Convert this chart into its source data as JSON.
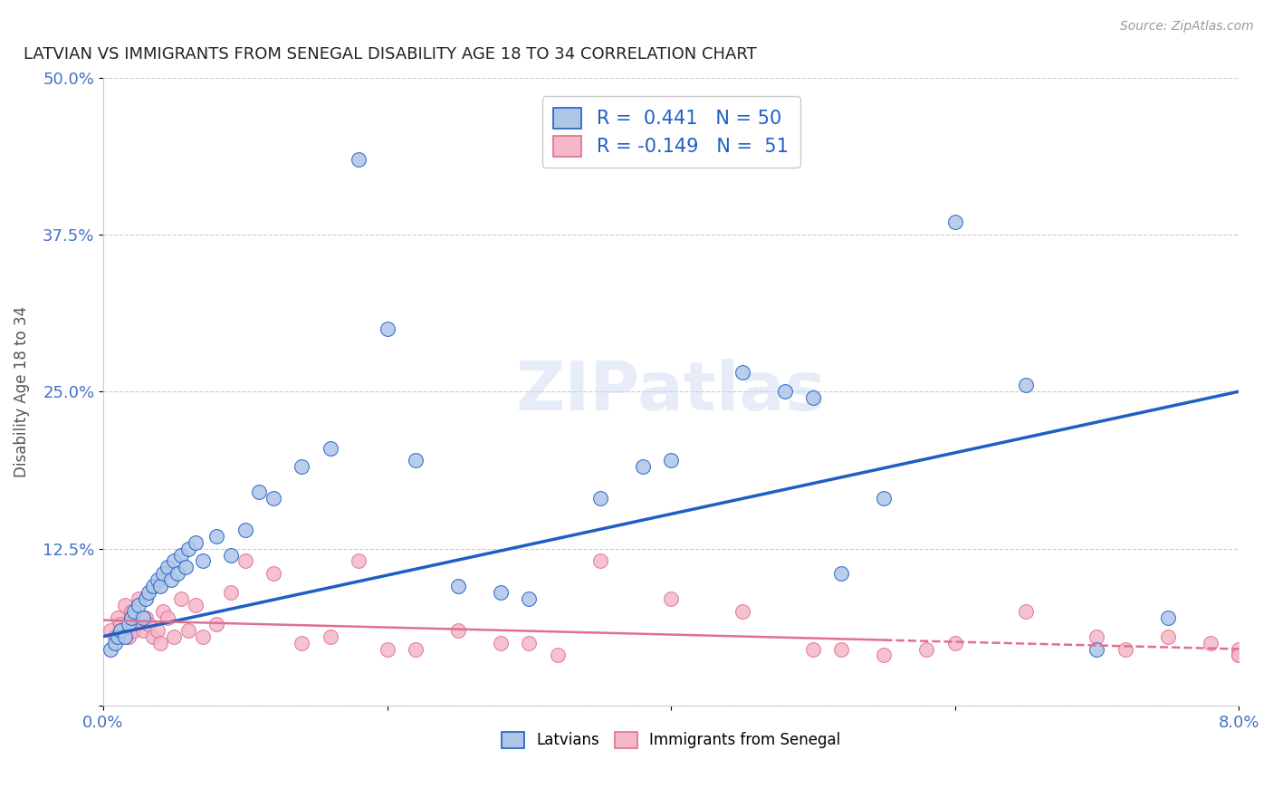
{
  "title": "LATVIAN VS IMMIGRANTS FROM SENEGAL DISABILITY AGE 18 TO 34 CORRELATION CHART",
  "source": "Source: ZipAtlas.com",
  "xlim": [
    0.0,
    8.0
  ],
  "ylim": [
    0.0,
    50.0
  ],
  "ylabel": "Disability Age 18 to 34",
  "legend_latvians": "Latvians",
  "legend_senegal": "Immigrants from Senegal",
  "R_latvian": 0.441,
  "N_latvian": 50,
  "R_senegal": -0.149,
  "N_senegal": 51,
  "color_latvian": "#aec6e8",
  "color_senegal": "#f4b8c8",
  "color_line_latvian": "#1f5fc4",
  "color_line_senegal": "#e07090",
  "color_axis_label": "#4472c4",
  "background_color": "#ffffff",
  "grid_color": "#cccccc",
  "latvian_x": [
    0.05,
    0.08,
    0.1,
    0.12,
    0.15,
    0.18,
    0.2,
    0.22,
    0.25,
    0.28,
    0.3,
    0.32,
    0.35,
    0.38,
    0.4,
    0.42,
    0.45,
    0.48,
    0.5,
    0.52,
    0.55,
    0.58,
    0.6,
    0.65,
    0.7,
    0.8,
    0.9,
    1.0,
    1.1,
    1.2,
    1.4,
    1.6,
    1.8,
    2.0,
    2.2,
    2.5,
    2.8,
    3.0,
    3.5,
    3.8,
    4.0,
    4.5,
    4.8,
    5.0,
    5.2,
    5.5,
    6.0,
    6.5,
    7.0,
    7.5
  ],
  "latvian_y": [
    4.5,
    5.0,
    5.5,
    6.0,
    5.5,
    6.5,
    7.0,
    7.5,
    8.0,
    7.0,
    8.5,
    9.0,
    9.5,
    10.0,
    9.5,
    10.5,
    11.0,
    10.0,
    11.5,
    10.5,
    12.0,
    11.0,
    12.5,
    13.0,
    11.5,
    13.5,
    12.0,
    14.0,
    17.0,
    16.5,
    19.0,
    20.5,
    43.5,
    30.0,
    19.5,
    9.5,
    9.0,
    8.5,
    16.5,
    19.0,
    19.5,
    26.5,
    25.0,
    24.5,
    10.5,
    16.5,
    38.5,
    25.5,
    4.5,
    7.0
  ],
  "senegal_x": [
    0.05,
    0.08,
    0.1,
    0.12,
    0.15,
    0.18,
    0.2,
    0.22,
    0.25,
    0.28,
    0.3,
    0.32,
    0.35,
    0.38,
    0.4,
    0.42,
    0.45,
    0.5,
    0.55,
    0.6,
    0.65,
    0.7,
    0.8,
    0.9,
    1.0,
    1.2,
    1.4,
    1.6,
    1.8,
    2.0,
    2.2,
    2.5,
    2.8,
    3.0,
    3.2,
    3.5,
    4.0,
    4.5,
    5.0,
    5.2,
    5.5,
    5.8,
    6.0,
    6.5,
    7.0,
    7.2,
    7.5,
    7.8,
    8.0,
    8.0,
    8.0
  ],
  "senegal_y": [
    6.0,
    5.5,
    7.0,
    6.5,
    8.0,
    5.5,
    7.5,
    6.0,
    8.5,
    6.0,
    7.0,
    6.5,
    5.5,
    6.0,
    5.0,
    7.5,
    7.0,
    5.5,
    8.5,
    6.0,
    8.0,
    5.5,
    6.5,
    9.0,
    11.5,
    10.5,
    5.0,
    5.5,
    11.5,
    4.5,
    4.5,
    6.0,
    5.0,
    5.0,
    4.0,
    11.5,
    8.5,
    7.5,
    4.5,
    4.5,
    4.0,
    4.5,
    5.0,
    7.5,
    5.5,
    4.5,
    5.5,
    5.0,
    4.5,
    4.0,
    4.0
  ],
  "trend_lv_x0": 0.0,
  "trend_lv_y0": 5.5,
  "trend_lv_x1": 8.0,
  "trend_lv_y1": 25.0,
  "trend_sn_x0": 0.0,
  "trend_sn_y0": 6.8,
  "trend_sn_x1": 8.0,
  "trend_sn_y1": 4.5
}
